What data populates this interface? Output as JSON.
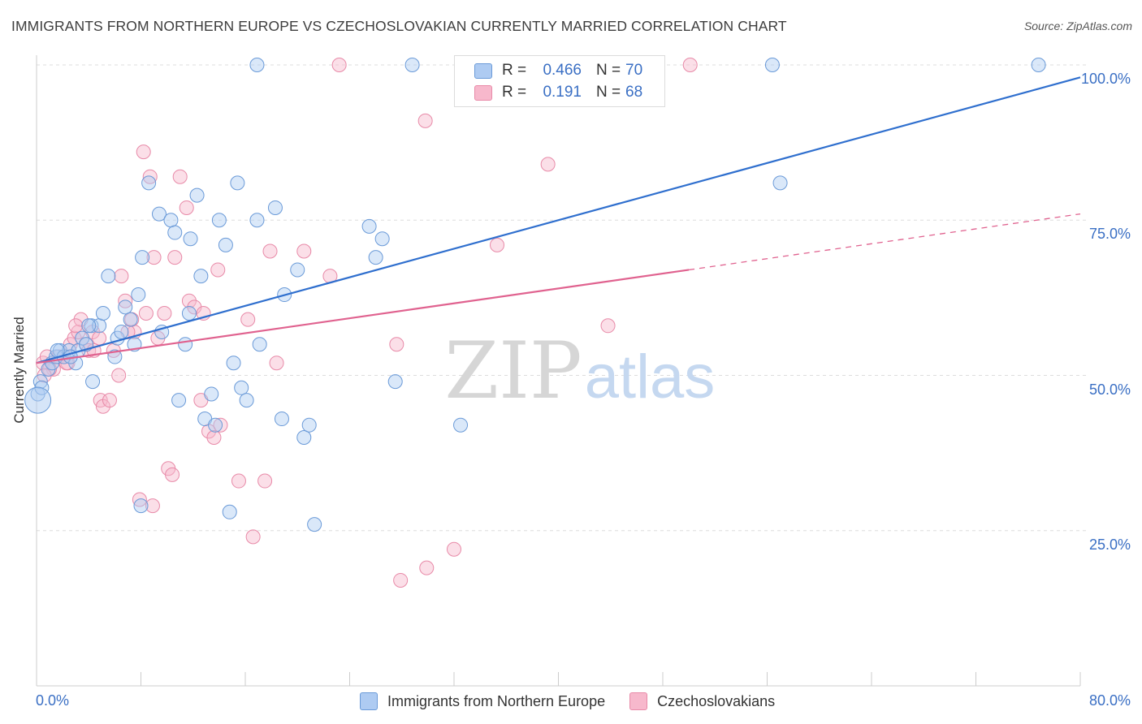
{
  "header": {
    "title": "IMMIGRANTS FROM NORTHERN EUROPE VS CZECHOSLOVAKIAN CURRENTLY MARRIED CORRELATION CHART",
    "source": "Source: ZipAtlas.com"
  },
  "legend_top": {
    "rows": [
      {
        "r_label": "R =",
        "r_value": "0.466",
        "n_label": "N =",
        "n_value": "70"
      },
      {
        "r_label": "R =",
        "r_value": "0.191",
        "n_label": "N =",
        "n_value": "68"
      }
    ]
  },
  "watermark": {
    "zip": "ZIP",
    "atlas": "atlas"
  },
  "colors": {
    "blue_fill": "#aecbf2",
    "blue_stroke": "#6a9ad8",
    "blue_line": "#2f6fce",
    "pink_fill": "#f7b8cc",
    "pink_stroke": "#e88aa8",
    "pink_line": "#e0628f",
    "axis_text": "#3a6fc4",
    "grid": "#dddddd"
  },
  "chart_data": {
    "type": "scatter",
    "title": "IMMIGRANTS FROM NORTHERN EUROPE VS CZECHOSLOVAKIAN CURRENTLY MARRIED CORRELATION CHART",
    "xlabel": "",
    "ylabel": "Currently Married",
    "xlim": [
      0,
      80
    ],
    "ylim": [
      0,
      100
    ],
    "x_tick_labels": [
      "0.0%",
      "80.0%"
    ],
    "y_ticks": [
      25,
      50,
      75,
      100
    ],
    "y_tick_labels": [
      "25.0%",
      "50.0%",
      "75.0%",
      "100.0%"
    ],
    "grid": true,
    "legend_position": "bottom",
    "series": [
      {
        "name": "Immigrants from Northern Europe",
        "r": 0.466,
        "n": 70,
        "trend": {
          "x": [
            0,
            80
          ],
          "y": [
            52,
            98
          ]
        },
        "points": [
          [
            0.1,
            47
          ],
          [
            0.3,
            49
          ],
          [
            0.4,
            48
          ],
          [
            0.9,
            51
          ],
          [
            1.2,
            52
          ],
          [
            1.5,
            53
          ],
          [
            1.8,
            54
          ],
          [
            2.1,
            53
          ],
          [
            2.5,
            54
          ],
          [
            3.0,
            52
          ],
          [
            3.2,
            54
          ],
          [
            3.5,
            56
          ],
          [
            3.8,
            55
          ],
          [
            4.2,
            58
          ],
          [
            4.3,
            49
          ],
          [
            4.8,
            58
          ],
          [
            5.1,
            60
          ],
          [
            5.5,
            66
          ],
          [
            6.0,
            53
          ],
          [
            6.2,
            56
          ],
          [
            6.8,
            61
          ],
          [
            7.2,
            59
          ],
          [
            7.5,
            55
          ],
          [
            7.8,
            63
          ],
          [
            8.1,
            69
          ],
          [
            8.6,
            81
          ],
          [
            9.4,
            76
          ],
          [
            9.6,
            57
          ],
          [
            10.3,
            75
          ],
          [
            10.6,
            73
          ],
          [
            10.9,
            46
          ],
          [
            11.4,
            55
          ],
          [
            11.7,
            60
          ],
          [
            11.8,
            72
          ],
          [
            12.3,
            79
          ],
          [
            12.6,
            66
          ],
          [
            12.9,
            43
          ],
          [
            13.4,
            47
          ],
          [
            13.7,
            42
          ],
          [
            14.0,
            75
          ],
          [
            14.5,
            71
          ],
          [
            14.8,
            28
          ],
          [
            15.1,
            52
          ],
          [
            15.4,
            81
          ],
          [
            15.7,
            48
          ],
          [
            16.1,
            46
          ],
          [
            16.9,
            75
          ],
          [
            17.1,
            55
          ],
          [
            18.3,
            77
          ],
          [
            18.8,
            43
          ],
          [
            19.0,
            63
          ],
          [
            20.0,
            67
          ],
          [
            20.5,
            40
          ],
          [
            20.9,
            42
          ],
          [
            21.3,
            26
          ],
          [
            25.5,
            74
          ],
          [
            26.0,
            69
          ],
          [
            26.5,
            72
          ],
          [
            27.5,
            49
          ],
          [
            28.8,
            100
          ],
          [
            32.5,
            42
          ],
          [
            56.4,
            100
          ],
          [
            57.0,
            81
          ],
          [
            76.8,
            100
          ],
          [
            16.9,
            100
          ],
          [
            8.0,
            29
          ],
          [
            4.0,
            58
          ],
          [
            2.6,
            53
          ],
          [
            6.5,
            57
          ],
          [
            1.6,
            54
          ]
        ]
      },
      {
        "name": "Czechoslovakians",
        "r": 0.191,
        "n": 68,
        "trend": {
          "x": [
            0,
            50
          ],
          "y": [
            52,
            67
          ]
        },
        "trend_dashed": {
          "x": [
            50,
            80
          ],
          "y": [
            67,
            76
          ]
        },
        "points": [
          [
            0.5,
            52
          ],
          [
            0.8,
            53
          ],
          [
            1.3,
            51
          ],
          [
            1.7,
            53
          ],
          [
            2.1,
            53
          ],
          [
            2.4,
            52
          ],
          [
            2.6,
            55
          ],
          [
            2.9,
            56
          ],
          [
            3.2,
            57
          ],
          [
            3.4,
            59
          ],
          [
            3.8,
            55
          ],
          [
            4.0,
            54
          ],
          [
            4.3,
            57
          ],
          [
            4.8,
            56
          ],
          [
            4.9,
            46
          ],
          [
            5.1,
            45
          ],
          [
            5.6,
            46
          ],
          [
            5.9,
            54
          ],
          [
            6.3,
            50
          ],
          [
            6.5,
            66
          ],
          [
            6.8,
            62
          ],
          [
            7.3,
            59
          ],
          [
            7.5,
            57
          ],
          [
            7.9,
            30
          ],
          [
            8.2,
            86
          ],
          [
            8.4,
            60
          ],
          [
            8.7,
            82
          ],
          [
            9.0,
            69
          ],
          [
            9.3,
            56
          ],
          [
            10.1,
            35
          ],
          [
            10.4,
            34
          ],
          [
            10.6,
            69
          ],
          [
            11.0,
            82
          ],
          [
            11.5,
            77
          ],
          [
            11.7,
            62
          ],
          [
            12.1,
            61
          ],
          [
            12.6,
            46
          ],
          [
            12.8,
            60
          ],
          [
            13.2,
            41
          ],
          [
            13.6,
            40
          ],
          [
            13.9,
            67
          ],
          [
            14.1,
            42
          ],
          [
            15.5,
            33
          ],
          [
            16.2,
            59
          ],
          [
            16.6,
            24
          ],
          [
            17.5,
            33
          ],
          [
            17.9,
            70
          ],
          [
            18.4,
            52
          ],
          [
            20.5,
            70
          ],
          [
            22.5,
            66
          ],
          [
            23.2,
            100
          ],
          [
            27.6,
            55
          ],
          [
            27.9,
            17
          ],
          [
            29.8,
            91
          ],
          [
            29.9,
            19
          ],
          [
            32.0,
            22
          ],
          [
            35.3,
            71
          ],
          [
            39.2,
            84
          ],
          [
            43.8,
            58
          ],
          [
            50.1,
            100
          ],
          [
            8.9,
            29
          ],
          [
            3.0,
            58
          ],
          [
            4.4,
            54
          ],
          [
            1.0,
            51
          ],
          [
            2.3,
            52
          ],
          [
            0.6,
            50
          ],
          [
            7.0,
            57
          ],
          [
            9.8,
            60
          ]
        ]
      }
    ]
  }
}
